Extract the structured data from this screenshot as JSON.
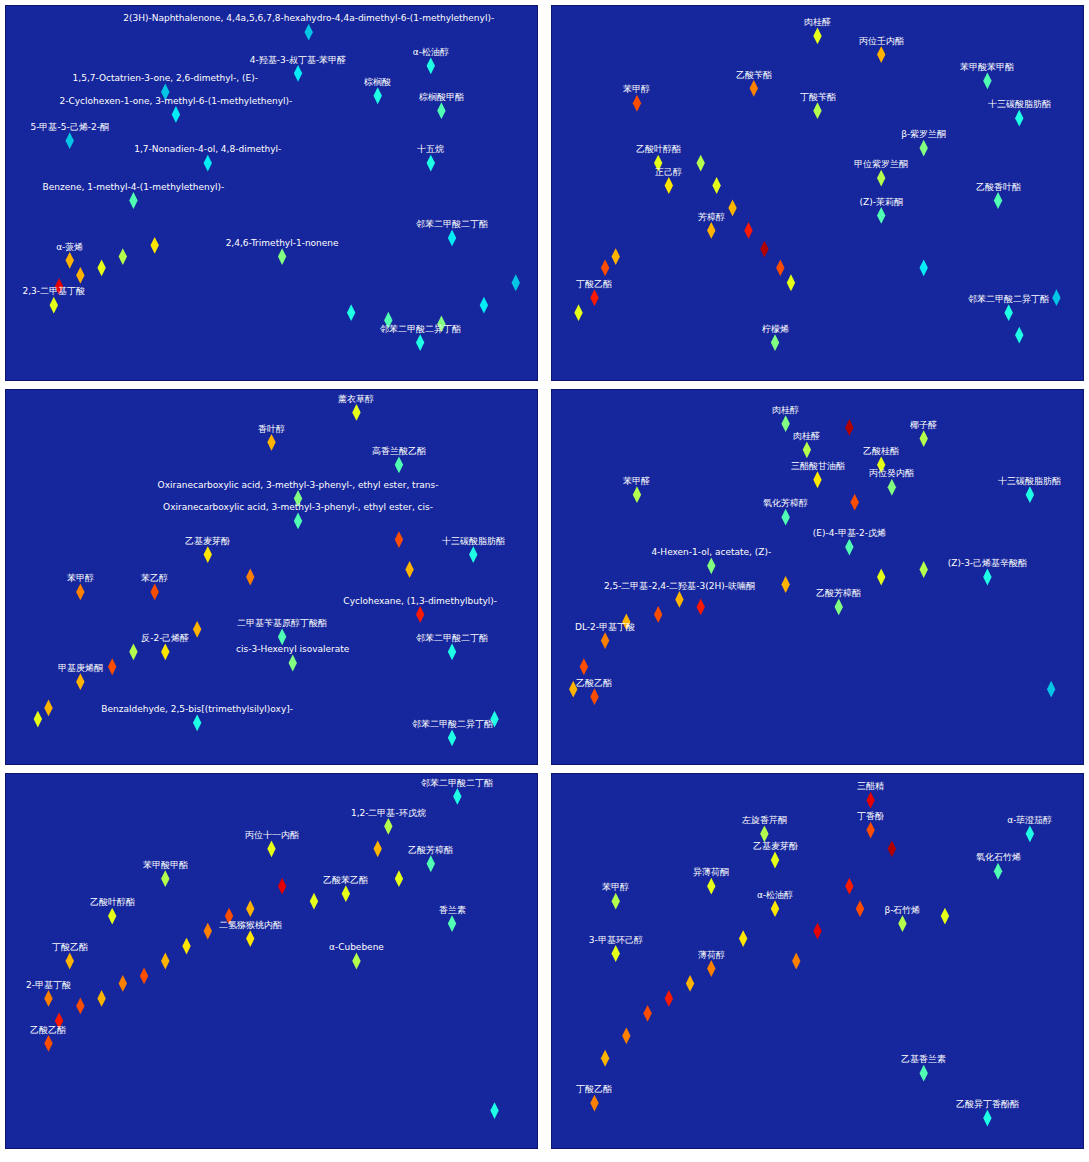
{
  "chart_data": [
    {
      "type": "scatter",
      "xlim": [
        0,
        100
      ],
      "ylim": [
        0,
        100
      ],
      "zlim": [
        0,
        100
      ],
      "tick_labels": false,
      "grid": false,
      "marker": "diamond-tall",
      "peaks": [
        {
          "x": 57,
          "y": 93,
          "z": 30,
          "label": "2(3H)-Naphthalenone, 4,4a,5,6,7,8-hexahydro-4,4a-dimethyl-6-(1-methylethenyl)-"
        },
        {
          "x": 55,
          "y": 82,
          "z": 35,
          "label": "4-羟基-3-叔丁基-苯甲醛"
        },
        {
          "x": 80,
          "y": 84,
          "z": 40,
          "label": "α-松油醇"
        },
        {
          "x": 30,
          "y": 77,
          "z": 30,
          "label": "1,5,7-Octatrien-3-one, 2,6-dimethyl-, (E)-"
        },
        {
          "x": 32,
          "y": 71,
          "z": 35,
          "label": "2-Cyclohexen-1-one, 3-methyl-6-(1-methylethenyl)-"
        },
        {
          "x": 12,
          "y": 64,
          "z": 30,
          "label": "5-甲基-5-己烯-2-酮"
        },
        {
          "x": 82,
          "y": 72,
          "z": 45,
          "label": "棕榈酸甲酯"
        },
        {
          "x": 70,
          "y": 76,
          "z": 40,
          "label": "棕榈酸"
        },
        {
          "x": 38,
          "y": 58,
          "z": 35,
          "label": "1,7-Nonadien-4-ol, 4,8-dimethyl-"
        },
        {
          "x": 80,
          "y": 58,
          "z": 40,
          "label": "十五烷"
        },
        {
          "x": 24,
          "y": 48,
          "z": 45,
          "label": "Benzene, 1-methyl-4-(1-methylethenyl)-"
        },
        {
          "x": 52,
          "y": 33,
          "z": 50,
          "label": "2,4,6-Trimethyl-1-nonene"
        },
        {
          "x": 84,
          "y": 38,
          "z": 35,
          "label": "邻苯二甲酸二丁酯"
        },
        {
          "x": 12,
          "y": 32,
          "z": 70,
          "label": "α-蒎烯"
        },
        {
          "x": 78,
          "y": 10,
          "z": 40,
          "label": "邻苯二甲酸二异丁酯"
        },
        {
          "x": 9,
          "y": 20,
          "z": 60,
          "label": "2,3-二甲基丁酸"
        },
        {
          "x": 65,
          "y": 18,
          "z": 40
        },
        {
          "x": 72,
          "y": 16,
          "z": 45
        },
        {
          "x": 82,
          "y": 15,
          "z": 50
        },
        {
          "x": 90,
          "y": 20,
          "z": 35
        },
        {
          "x": 96,
          "y": 26,
          "z": 30
        },
        {
          "x": 10,
          "y": 25,
          "z": 90
        },
        {
          "x": 14,
          "y": 28,
          "z": 70
        },
        {
          "x": 18,
          "y": 30,
          "z": 60
        },
        {
          "x": 22,
          "y": 33,
          "z": 55
        },
        {
          "x": 28,
          "y": 36,
          "z": 65
        }
      ]
    },
    {
      "type": "scatter",
      "xlim": [
        0,
        100
      ],
      "ylim": [
        0,
        100
      ],
      "zlim": [
        0,
        100
      ],
      "tick_labels": false,
      "grid": false,
      "marker": "diamond-tall",
      "peaks": [
        {
          "x": 50,
          "y": 92,
          "z": 60,
          "label": "肉桂醛"
        },
        {
          "x": 62,
          "y": 87,
          "z": 70,
          "label": "丙位壬内酯"
        },
        {
          "x": 82,
          "y": 80,
          "z": 45,
          "label": "苯甲酸苯甲酯"
        },
        {
          "x": 38,
          "y": 78,
          "z": 75,
          "label": "乙酸苄酯"
        },
        {
          "x": 16,
          "y": 74,
          "z": 80,
          "label": "苯甲醇"
        },
        {
          "x": 50,
          "y": 72,
          "z": 55,
          "label": "丁酸苄酯"
        },
        {
          "x": 88,
          "y": 70,
          "z": 40,
          "label": "十三碳酸脂肪酯"
        },
        {
          "x": 70,
          "y": 62,
          "z": 50,
          "label": "β-紫罗兰酮"
        },
        {
          "x": 62,
          "y": 54,
          "z": 55,
          "label": "甲位紫罗兰酮"
        },
        {
          "x": 20,
          "y": 58,
          "z": 60,
          "label": "乙酸叶醇酯"
        },
        {
          "x": 22,
          "y": 52,
          "z": 65,
          "label": "正己醇"
        },
        {
          "x": 62,
          "y": 44,
          "z": 45,
          "label": "(Z)-茉莉酮"
        },
        {
          "x": 30,
          "y": 40,
          "z": 70,
          "label": "芳樟醇"
        },
        {
          "x": 8,
          "y": 22,
          "z": 85,
          "label": "丁酸乙酯"
        },
        {
          "x": 42,
          "y": 10,
          "z": 50,
          "label": "柠檬烯"
        },
        {
          "x": 86,
          "y": 18,
          "z": 40,
          "label": "邻苯二甲酸二异丁酯"
        },
        {
          "x": 84,
          "y": 48,
          "z": 45,
          "label": "乙酸香叶酯"
        },
        {
          "x": 28,
          "y": 58,
          "z": 55
        },
        {
          "x": 31,
          "y": 52,
          "z": 60
        },
        {
          "x": 34,
          "y": 46,
          "z": 70
        },
        {
          "x": 37,
          "y": 40,
          "z": 85
        },
        {
          "x": 40,
          "y": 35,
          "z": 95
        },
        {
          "x": 43,
          "y": 30,
          "z": 80
        },
        {
          "x": 45,
          "y": 26,
          "z": 60
        },
        {
          "x": 10,
          "y": 30,
          "z": 80
        },
        {
          "x": 12,
          "y": 33,
          "z": 70
        },
        {
          "x": 5,
          "y": 18,
          "z": 60
        },
        {
          "x": 88,
          "y": 12,
          "z": 40
        },
        {
          "x": 95,
          "y": 22,
          "z": 30
        },
        {
          "x": 70,
          "y": 30,
          "z": 35
        }
      ]
    },
    {
      "type": "scatter",
      "xlim": [
        0,
        100
      ],
      "ylim": [
        0,
        100
      ],
      "zlim": [
        0,
        100
      ],
      "tick_labels": false,
      "grid": false,
      "marker": "diamond-tall",
      "peaks": [
        {
          "x": 66,
          "y": 94,
          "z": 60,
          "label": "薰衣草醇"
        },
        {
          "x": 50,
          "y": 86,
          "z": 70,
          "label": "香叶醇"
        },
        {
          "x": 74,
          "y": 80,
          "z": 45,
          "label": "高香兰酸乙酯"
        },
        {
          "x": 55,
          "y": 71,
          "z": 50,
          "label": "Oxiranecarboxylic acid, 3-methyl-3-phenyl-, ethyl ester, trans-"
        },
        {
          "x": 55,
          "y": 65,
          "z": 45,
          "label": "Oxiranecarboxylic acid, 3-methyl-3-phenyl-, ethyl ester, cis-"
        },
        {
          "x": 88,
          "y": 56,
          "z": 40,
          "label": "十三碳酸脂肪酯"
        },
        {
          "x": 38,
          "y": 56,
          "z": 65,
          "label": "乙基麦芽酚"
        },
        {
          "x": 14,
          "y": 46,
          "z": 75,
          "label": "苯甲醇"
        },
        {
          "x": 28,
          "y": 46,
          "z": 80,
          "label": "苯乙醇"
        },
        {
          "x": 78,
          "y": 40,
          "z": 85,
          "label": "Cyclohexane, (1,3-dimethylbutyl)-"
        },
        {
          "x": 52,
          "y": 34,
          "z": 45,
          "label": "二甲基苄基原醇丁酸酯"
        },
        {
          "x": 54,
          "y": 27,
          "z": 50,
          "label": "cis-3-Hexenyl isovalerate"
        },
        {
          "x": 84,
          "y": 30,
          "z": 40,
          "label": "邻苯二甲酸二丁酯"
        },
        {
          "x": 30,
          "y": 30,
          "z": 65,
          "label": "反-2-己烯醛"
        },
        {
          "x": 14,
          "y": 22,
          "z": 70,
          "label": "甲基庚烯酮"
        },
        {
          "x": 36,
          "y": 11,
          "z": 40,
          "label": "Benzaldehyde, 2,5-bis[(trimethylsilyl)oxy]-"
        },
        {
          "x": 84,
          "y": 7,
          "z": 40,
          "label": "邻苯二甲酸二异丁酯"
        },
        {
          "x": 8,
          "y": 15,
          "z": 70
        },
        {
          "x": 6,
          "y": 12,
          "z": 60
        },
        {
          "x": 20,
          "y": 26,
          "z": 80
        },
        {
          "x": 24,
          "y": 30,
          "z": 55
        },
        {
          "x": 36,
          "y": 36,
          "z": 70
        },
        {
          "x": 46,
          "y": 50,
          "z": 75
        },
        {
          "x": 74,
          "y": 60,
          "z": 80
        },
        {
          "x": 76,
          "y": 52,
          "z": 70
        },
        {
          "x": 92,
          "y": 12,
          "z": 40
        }
      ]
    },
    {
      "type": "scatter",
      "xlim": [
        0,
        100
      ],
      "ylim": [
        0,
        100
      ],
      "zlim": [
        0,
        100
      ],
      "tick_labels": false,
      "grid": false,
      "marker": "diamond-tall",
      "peaks": [
        {
          "x": 44,
          "y": 91,
          "z": 50,
          "label": "肉桂醇"
        },
        {
          "x": 70,
          "y": 87,
          "z": 55,
          "label": "椰子醛"
        },
        {
          "x": 48,
          "y": 84,
          "z": 55,
          "label": "肉桂醛"
        },
        {
          "x": 62,
          "y": 80,
          "z": 60,
          "label": "乙酸桂酯"
        },
        {
          "x": 64,
          "y": 74,
          "z": 50,
          "label": "丙位癸内酯"
        },
        {
          "x": 50,
          "y": 76,
          "z": 65,
          "label": "三醋酸甘油酯"
        },
        {
          "x": 16,
          "y": 72,
          "z": 55,
          "label": "苯甲醛"
        },
        {
          "x": 90,
          "y": 72,
          "z": 40,
          "label": "十三碳酸脂肪酯"
        },
        {
          "x": 44,
          "y": 66,
          "z": 45,
          "label": "氧化芳樟醇"
        },
        {
          "x": 56,
          "y": 58,
          "z": 45,
          "label": "(E)-4-甲基-2-戊烯"
        },
        {
          "x": 30,
          "y": 53,
          "z": 50,
          "label": "4-Hexen-1-ol, acetate, (Z)-"
        },
        {
          "x": 82,
          "y": 50,
          "z": 40,
          "label": "(Z)-3-己烯基辛酸酯"
        },
        {
          "x": 24,
          "y": 44,
          "z": 70,
          "label": "2,5-二甲基-2,4-二羟基-3(2H)-呋喃酮"
        },
        {
          "x": 54,
          "y": 42,
          "z": 50,
          "label": "乙酸芳樟酯"
        },
        {
          "x": 10,
          "y": 33,
          "z": 75,
          "label": "DL-2-甲基丁酸"
        },
        {
          "x": 8,
          "y": 18,
          "z": 80,
          "label": "乙酸乙酯"
        },
        {
          "x": 56,
          "y": 90,
          "z": 95
        },
        {
          "x": 57,
          "y": 70,
          "z": 80
        },
        {
          "x": 14,
          "y": 38,
          "z": 70
        },
        {
          "x": 20,
          "y": 40,
          "z": 80
        },
        {
          "x": 28,
          "y": 42,
          "z": 85
        },
        {
          "x": 44,
          "y": 48,
          "z": 70
        },
        {
          "x": 62,
          "y": 50,
          "z": 60
        },
        {
          "x": 70,
          "y": 52,
          "z": 55
        },
        {
          "x": 6,
          "y": 26,
          "z": 80
        },
        {
          "x": 4,
          "y": 20,
          "z": 70
        },
        {
          "x": 94,
          "y": 20,
          "z": 30
        }
      ]
    },
    {
      "type": "scatter",
      "xlim": [
        0,
        100
      ],
      "ylim": [
        0,
        100
      ],
      "zlim": [
        0,
        100
      ],
      "tick_labels": false,
      "grid": false,
      "marker": "diamond-tall",
      "peaks": [
        {
          "x": 85,
          "y": 94,
          "z": 40,
          "label": "邻苯二甲酸二丁酯"
        },
        {
          "x": 72,
          "y": 86,
          "z": 55,
          "label": "1,2-二甲基-环戊烷"
        },
        {
          "x": 50,
          "y": 80,
          "z": 60,
          "label": "丙位十一内酯"
        },
        {
          "x": 80,
          "y": 76,
          "z": 45,
          "label": "乙酸芳樟酯"
        },
        {
          "x": 30,
          "y": 72,
          "z": 55,
          "label": "苯甲酸甲酯"
        },
        {
          "x": 64,
          "y": 68,
          "z": 60,
          "label": "乙酸苯乙酯"
        },
        {
          "x": 84,
          "y": 60,
          "z": 45,
          "label": "香兰素"
        },
        {
          "x": 20,
          "y": 62,
          "z": 60,
          "label": "乙酸叶醇酯"
        },
        {
          "x": 46,
          "y": 56,
          "z": 65,
          "label": "二氢猕猴桃内酯"
        },
        {
          "x": 66,
          "y": 50,
          "z": 55,
          "label": "α-Cubebene"
        },
        {
          "x": 12,
          "y": 50,
          "z": 70,
          "label": "丁酸乙酯"
        },
        {
          "x": 8,
          "y": 40,
          "z": 75,
          "label": "2-甲基丁酸"
        },
        {
          "x": 8,
          "y": 28,
          "z": 80,
          "label": "乙酸乙酯"
        },
        {
          "x": 10,
          "y": 34,
          "z": 85
        },
        {
          "x": 14,
          "y": 38,
          "z": 80
        },
        {
          "x": 18,
          "y": 40,
          "z": 70
        },
        {
          "x": 22,
          "y": 44,
          "z": 75
        },
        {
          "x": 26,
          "y": 46,
          "z": 80
        },
        {
          "x": 30,
          "y": 50,
          "z": 70
        },
        {
          "x": 34,
          "y": 54,
          "z": 65
        },
        {
          "x": 38,
          "y": 58,
          "z": 75
        },
        {
          "x": 42,
          "y": 62,
          "z": 80
        },
        {
          "x": 46,
          "y": 64,
          "z": 70
        },
        {
          "x": 52,
          "y": 70,
          "z": 90
        },
        {
          "x": 58,
          "y": 66,
          "z": 60
        },
        {
          "x": 70,
          "y": 80,
          "z": 70
        },
        {
          "x": 74,
          "y": 72,
          "z": 60
        },
        {
          "x": 92,
          "y": 10,
          "z": 40
        }
      ]
    },
    {
      "type": "scatter",
      "xlim": [
        0,
        100
      ],
      "ylim": [
        0,
        100
      ],
      "zlim": [
        0,
        100
      ],
      "tick_labels": false,
      "grid": false,
      "marker": "diamond-tall",
      "peaks": [
        {
          "x": 60,
          "y": 93,
          "z": 90,
          "label": "三醋精"
        },
        {
          "x": 60,
          "y": 85,
          "z": 80,
          "label": "丁香酚"
        },
        {
          "x": 40,
          "y": 84,
          "z": 55,
          "label": "左旋香芹酮"
        },
        {
          "x": 90,
          "y": 84,
          "z": 40,
          "label": "α-荜澄茄醇"
        },
        {
          "x": 42,
          "y": 77,
          "z": 60,
          "label": "乙基麦芽酚"
        },
        {
          "x": 84,
          "y": 74,
          "z": 45,
          "label": "氧化石竹烯"
        },
        {
          "x": 30,
          "y": 70,
          "z": 60,
          "label": "异薄荷酮"
        },
        {
          "x": 12,
          "y": 66,
          "z": 55,
          "label": "苯甲醇"
        },
        {
          "x": 42,
          "y": 64,
          "z": 65,
          "label": "α-松油醇"
        },
        {
          "x": 66,
          "y": 60,
          "z": 55,
          "label": "β-石竹烯"
        },
        {
          "x": 12,
          "y": 52,
          "z": 60,
          "label": "3-甲基环己醇"
        },
        {
          "x": 30,
          "y": 48,
          "z": 75,
          "label": "薄荷醇"
        },
        {
          "x": 70,
          "y": 20,
          "z": 45,
          "label": "乙基香兰素"
        },
        {
          "x": 82,
          "y": 8,
          "z": 40,
          "label": "乙酸异丁香酚酯"
        },
        {
          "x": 8,
          "y": 12,
          "z": 75,
          "label": "丁酸乙酯"
        },
        {
          "x": 64,
          "y": 80,
          "z": 95
        },
        {
          "x": 56,
          "y": 70,
          "z": 85
        },
        {
          "x": 58,
          "y": 64,
          "z": 80
        },
        {
          "x": 50,
          "y": 58,
          "z": 90
        },
        {
          "x": 46,
          "y": 50,
          "z": 75
        },
        {
          "x": 22,
          "y": 40,
          "z": 85
        },
        {
          "x": 18,
          "y": 36,
          "z": 80
        },
        {
          "x": 14,
          "y": 30,
          "z": 75
        },
        {
          "x": 26,
          "y": 44,
          "z": 70
        },
        {
          "x": 36,
          "y": 56,
          "z": 65
        },
        {
          "x": 74,
          "y": 62,
          "z": 60
        },
        {
          "x": 10,
          "y": 24,
          "z": 70
        }
      ]
    }
  ]
}
